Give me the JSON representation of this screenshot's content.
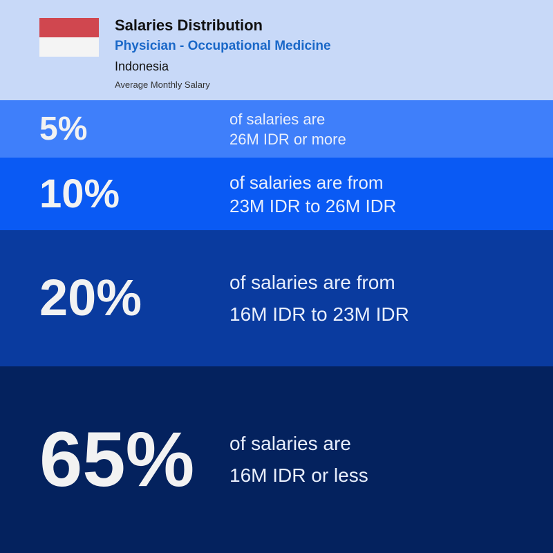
{
  "header": {
    "title": "Salaries Distribution",
    "subtitle": "Physician - Occupational Medicine",
    "country": "Indonesia",
    "caption": "Average Monthly Salary"
  },
  "bands": [
    {
      "percent": "5%",
      "line1": "of salaries are",
      "line2": "26M IDR or more"
    },
    {
      "percent": "10%",
      "line1": "of salaries are from",
      "line2": "23M IDR to 26M IDR"
    },
    {
      "percent": "20%",
      "line1": "of salaries are from",
      "line2": "16M IDR to 23M IDR"
    },
    {
      "percent": "65%",
      "line1": "of salaries are",
      "line2": "16M IDR or less"
    }
  ]
}
